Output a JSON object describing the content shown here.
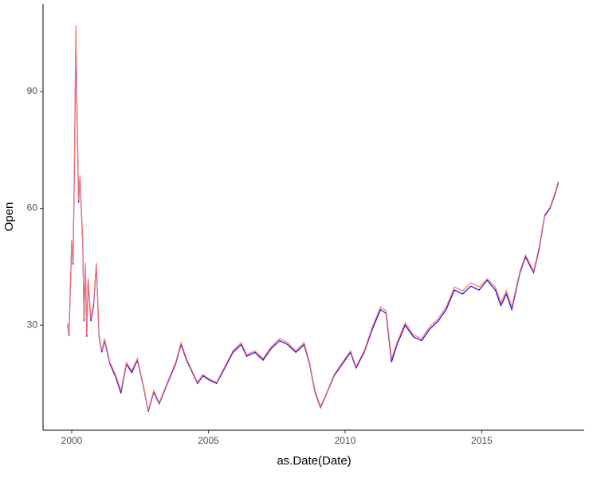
{
  "chart_data": {
    "type": "line",
    "x_label": "as.Date(Date)",
    "y_label": "Open",
    "x": [
      1999.85,
      1999.9,
      2000.0,
      2000.05,
      2000.1,
      2000.15,
      2000.2,
      2000.25,
      2000.3,
      2000.4,
      2000.45,
      2000.5,
      2000.55,
      2000.6,
      2000.7,
      2000.8,
      2000.9,
      2001.0,
      2001.1,
      2001.2,
      2001.4,
      2001.6,
      2001.8,
      2002.0,
      2002.2,
      2002.4,
      2002.6,
      2002.8,
      2003.0,
      2003.2,
      2003.5,
      2003.8,
      2004.0,
      2004.2,
      2004.4,
      2004.6,
      2004.8,
      2005.0,
      2005.3,
      2005.6,
      2005.9,
      2006.2,
      2006.4,
      2006.7,
      2007.0,
      2007.3,
      2007.6,
      2007.9,
      2008.2,
      2008.5,
      2008.7,
      2008.9,
      2009.1,
      2009.3,
      2009.6,
      2009.9,
      2010.2,
      2010.4,
      2010.7,
      2011.0,
      2011.3,
      2011.5,
      2011.7,
      2011.9,
      2012.2,
      2012.5,
      2012.8,
      2013.1,
      2013.4,
      2013.7,
      2014.0,
      2014.3,
      2014.6,
      2014.9,
      2015.2,
      2015.5,
      2015.7,
      2015.9,
      2016.1,
      2016.4,
      2016.6,
      2016.9,
      2017.1,
      2017.3,
      2017.5,
      2017.7,
      2017.8
    ],
    "series": [
      {
        "color": "#1f00e0",
        "values": [
          30.2,
          27.2,
          51.5,
          45.5,
          72,
          103,
          82,
          61.5,
          68,
          51.5,
          31,
          45.5,
          27,
          41.5,
          31,
          35,
          45.5,
          27,
          23,
          26,
          20,
          16.8,
          12.5,
          20,
          17.8,
          21,
          15,
          7.8,
          12.8,
          9.8,
          15,
          20,
          25,
          21,
          18,
          15,
          17,
          16,
          15,
          19,
          23,
          25,
          22,
          23,
          21,
          24,
          26,
          25,
          23,
          25,
          20,
          12.8,
          8.8,
          12,
          17,
          20,
          23,
          19,
          23,
          29,
          34,
          33,
          20.5,
          25,
          30,
          27,
          26,
          29,
          31,
          34,
          39,
          38,
          40,
          39,
          41.5,
          39,
          35,
          38,
          34,
          43.5,
          47.5,
          43.5,
          49.5,
          58,
          60,
          64,
          66.5
        ]
      },
      {
        "color": "#f8766d",
        "values": [
          30.6,
          27.5,
          52,
          46,
          72.6,
          107,
          83,
          62,
          68.5,
          52,
          31.6,
          46,
          27.5,
          42,
          31.6,
          35.7,
          46,
          27.5,
          23.4,
          26.5,
          20.4,
          17.3,
          13.2,
          20.4,
          18.3,
          21.4,
          15.3,
          8.1,
          13.2,
          10.1,
          15.3,
          20.4,
          25.5,
          21.4,
          18.3,
          15.3,
          17.3,
          16.3,
          15.3,
          19.4,
          23.4,
          25.5,
          22.4,
          23.4,
          21.4,
          24.5,
          26.5,
          25.5,
          23.4,
          25.5,
          20.4,
          13.2,
          9.1,
          12.2,
          17.3,
          20.4,
          23.4,
          19.4,
          23.4,
          29.6,
          34.7,
          33.7,
          21.4,
          25.5,
          30.6,
          27.5,
          26.5,
          29.6,
          31.6,
          34.7,
          39.8,
          38.8,
          40.9,
          39.8,
          41.9,
          39.8,
          35.7,
          38.8,
          34.7,
          43.9,
          48,
          43.9,
          50.1,
          58.3,
          60.3,
          64.4,
          66.9
        ]
      }
    ],
    "xlim": [
      1998.95,
      2018.75
    ],
    "xticks": [
      2000,
      2005,
      2010,
      2015
    ],
    "ylim": [
      3,
      112.5
    ],
    "yticks": [
      30,
      60,
      90
    ]
  }
}
